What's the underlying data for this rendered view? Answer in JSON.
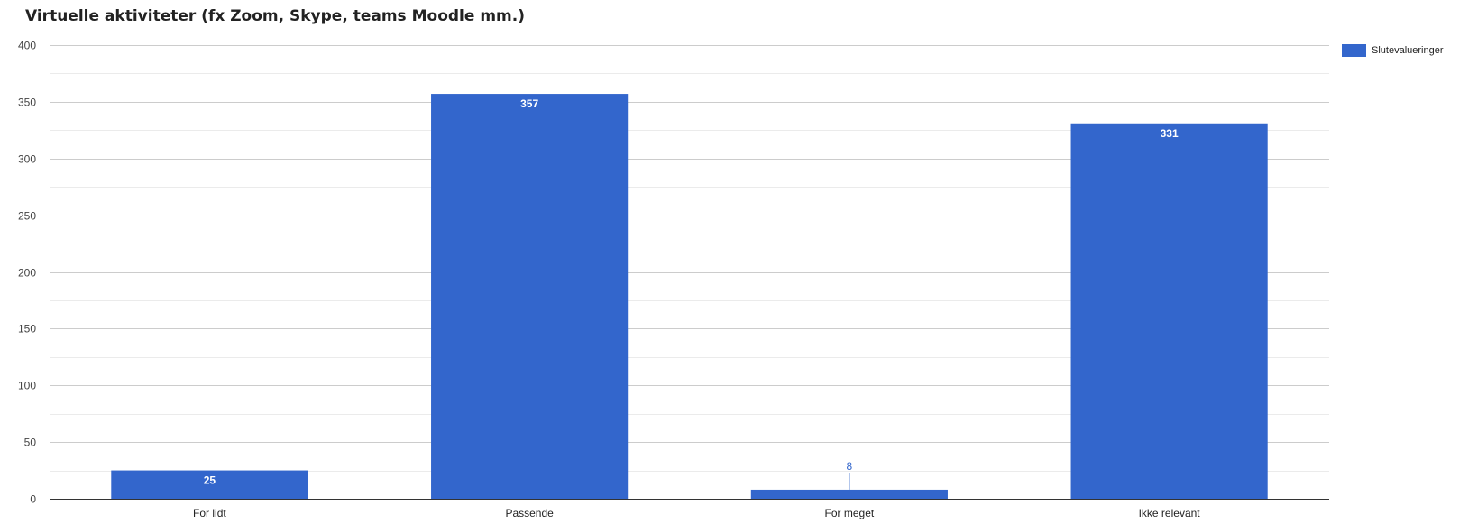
{
  "chart_data": {
    "type": "bar",
    "title": "Virtuelle aktiviteter (fx Zoom, Skype, teams Moodle mm.)",
    "categories": [
      "For lidt",
      "Passende",
      "For meget",
      "Ikke relevant"
    ],
    "series": [
      {
        "name": "Slutevalueringer",
        "values": [
          25,
          357,
          8,
          331
        ],
        "color": "#3366cc"
      }
    ],
    "data_labels": [
      "25",
      "357",
      "8",
      "331"
    ],
    "ylim": [
      0,
      400
    ],
    "yticks": [
      0,
      50,
      100,
      150,
      200,
      250,
      300,
      350,
      400
    ],
    "ytick_labels": [
      "0",
      "50",
      "100",
      "150",
      "200",
      "250",
      "300",
      "350",
      "400"
    ],
    "grid": true,
    "legend_position": "right",
    "xlabel": "",
    "ylabel": ""
  }
}
